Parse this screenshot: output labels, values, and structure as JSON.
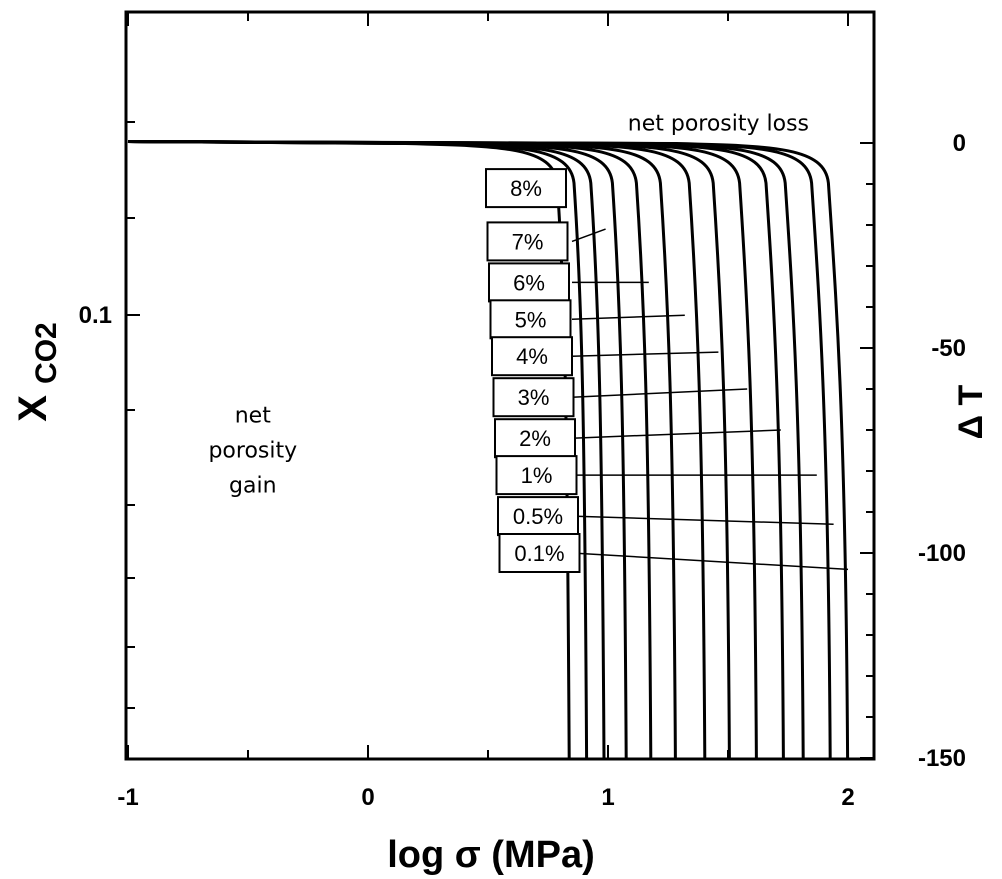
{
  "chart_data": {
    "type": "line",
    "title": "",
    "xlabel": "log σ (MPa)",
    "ylabel_left": "X",
    "ylabel_left_subscript": "CO2",
    "ylabel_right": "Δ T",
    "xlim": [
      -1,
      2.1
    ],
    "ylim_right": [
      -150,
      10
    ],
    "x_ticks": [
      {
        "value": -1,
        "label": "-1"
      },
      {
        "value": 0,
        "label": "0"
      },
      {
        "value": 1,
        "label": "1"
      },
      {
        "value": 2,
        "label": "2"
      }
    ],
    "y_left_ticks": [
      {
        "value": -33,
        "label": "0.1"
      }
    ],
    "y_right_ticks": [
      {
        "value": 0,
        "label": "0"
      },
      {
        "value": -50,
        "label": "-50"
      },
      {
        "value": -100,
        "label": "-100"
      },
      {
        "value": -150,
        "label": "-150"
      }
    ],
    "grid": false,
    "annotations": [
      {
        "text": "net  porosity  loss",
        "x": 1.46,
        "y": 3
      },
      {
        "lines": [
          "net",
          "porosity",
          "gain"
        ],
        "x": -0.48,
        "y": -75
      }
    ],
    "curve_onsets": [
      0.73,
      0.8,
      0.87,
      0.96,
      1.06,
      1.16,
      1.28,
      1.38,
      1.49,
      1.6,
      1.68,
      1.79,
      1.86
    ],
    "series": [
      {
        "name": "8%",
        "label_y": -11
      },
      {
        "name": "7%",
        "label_y": -24
      },
      {
        "name": "6%",
        "label_y": -34
      },
      {
        "name": "5%",
        "label_y": -43
      },
      {
        "name": "4%",
        "label_y": -52
      },
      {
        "name": "3%",
        "label_y": -62
      },
      {
        "name": "2%",
        "label_y": -72
      },
      {
        "name": "1%",
        "label_y": -81
      },
      {
        "name": "0.5%",
        "label_y": -91
      },
      {
        "name": "0.1%",
        "label_y": -100
      }
    ],
    "tie_lines": [
      {
        "series": "7%",
        "x": 0.99,
        "y": -21
      },
      {
        "series": "6%",
        "x": 1.17,
        "y": -34
      },
      {
        "series": "5%",
        "x": 1.32,
        "y": -42
      },
      {
        "series": "4%",
        "x": 1.46,
        "y": -51
      },
      {
        "series": "3%",
        "x": 1.58,
        "y": -60
      },
      {
        "series": "2%",
        "x": 1.72,
        "y": -70
      },
      {
        "series": "1%",
        "x": 1.87,
        "y": -81
      },
      {
        "series": "0.5%",
        "x": 1.94,
        "y": -93
      },
      {
        "series": "0.1%",
        "x": 2.0,
        "y": -104
      }
    ]
  }
}
